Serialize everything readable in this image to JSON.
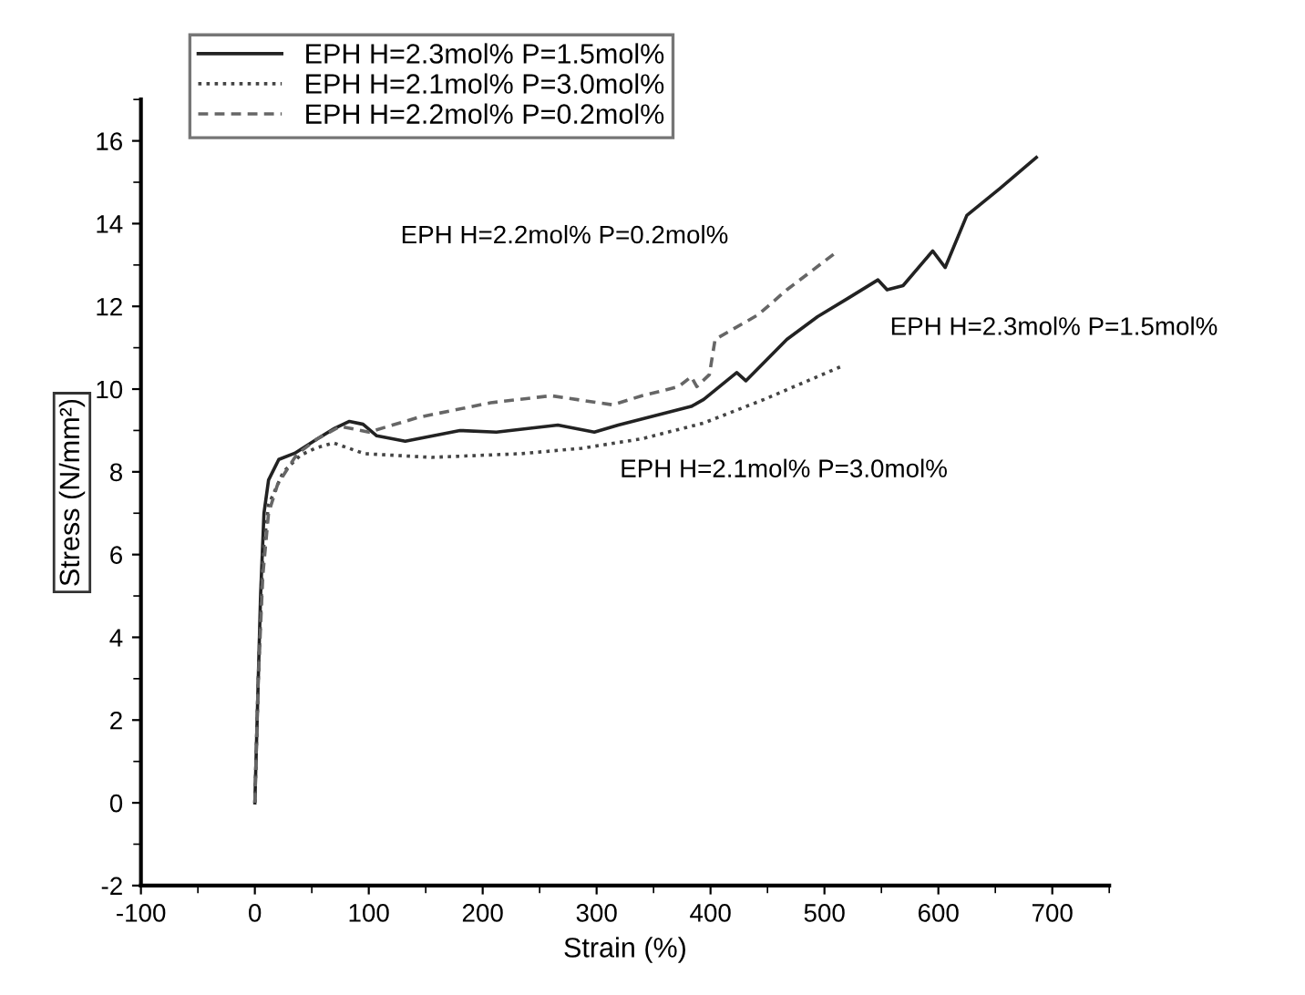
{
  "chart_data": {
    "type": "line",
    "xlabel": "Strain (%)",
    "ylabel": "Stress (N/mm²)",
    "xlim": [
      -100,
      750
    ],
    "ylim": [
      -2,
      17
    ],
    "xticks": [
      -100,
      0,
      100,
      200,
      300,
      400,
      500,
      600,
      700
    ],
    "yticks": [
      -2,
      0,
      2,
      4,
      6,
      8,
      10,
      12,
      14,
      16
    ],
    "grid": false,
    "legend": "top",
    "marker": "none",
    "series": [
      {
        "name": "EPH H=2.3mol% P=1.5mol%",
        "color": "#222222",
        "line_style": "solid",
        "x": [
          0,
          2,
          5,
          8,
          12,
          21,
          35,
          55,
          70,
          83,
          95,
          107,
          132,
          180,
          212,
          266,
          298,
          319,
          383,
          394,
          423,
          431,
          467,
          494,
          521,
          547,
          555,
          569,
          595,
          606,
          625,
          654,
          686
        ],
        "values": [
          0,
          2,
          5,
          7,
          7.8,
          8.3,
          8.45,
          8.8,
          9.05,
          9.22,
          9.15,
          8.87,
          8.74,
          9.0,
          8.96,
          9.13,
          8.96,
          9.13,
          9.58,
          9.75,
          10.4,
          10.2,
          11.2,
          11.75,
          12.2,
          12.64,
          12.4,
          12.5,
          13.34,
          12.94,
          14.2,
          14.85,
          15.6
        ]
      },
      {
        "name": "EPH H=2.1mol% P=3.0mol%",
        "color": "#444444",
        "line_style": "dotted",
        "x": [
          0,
          3,
          7,
          12,
          25,
          40,
          53,
          69,
          96,
          155,
          234,
          287,
          340,
          394,
          447,
          515
        ],
        "values": [
          0,
          3,
          6,
          7.2,
          8.0,
          8.4,
          8.57,
          8.7,
          8.44,
          8.35,
          8.44,
          8.57,
          8.8,
          9.18,
          9.75,
          10.55
        ]
      },
      {
        "name": "EPH H=2.2mol% P=0.2mol%",
        "color": "#666666",
        "line_style": "dashed",
        "x": [
          0,
          3,
          7,
          12,
          20,
          37,
          55,
          75,
          100,
          144,
          207,
          260,
          314,
          340,
          372,
          383,
          388,
          399,
          404,
          442,
          467,
          510
        ],
        "values": [
          0,
          3,
          5.5,
          7,
          7.7,
          8.43,
          8.8,
          9.1,
          8.96,
          9.32,
          9.67,
          9.84,
          9.62,
          9.84,
          10.06,
          10.3,
          10.06,
          10.35,
          11.2,
          11.8,
          12.4,
          13.3
        ]
      }
    ],
    "annotations": [
      "EPH H=2.2mol% P=0.2mol%",
      "EPH H=2.3mol% P=1.5mol%",
      "EPH H=2.1mol% P=3.0mol%"
    ]
  }
}
